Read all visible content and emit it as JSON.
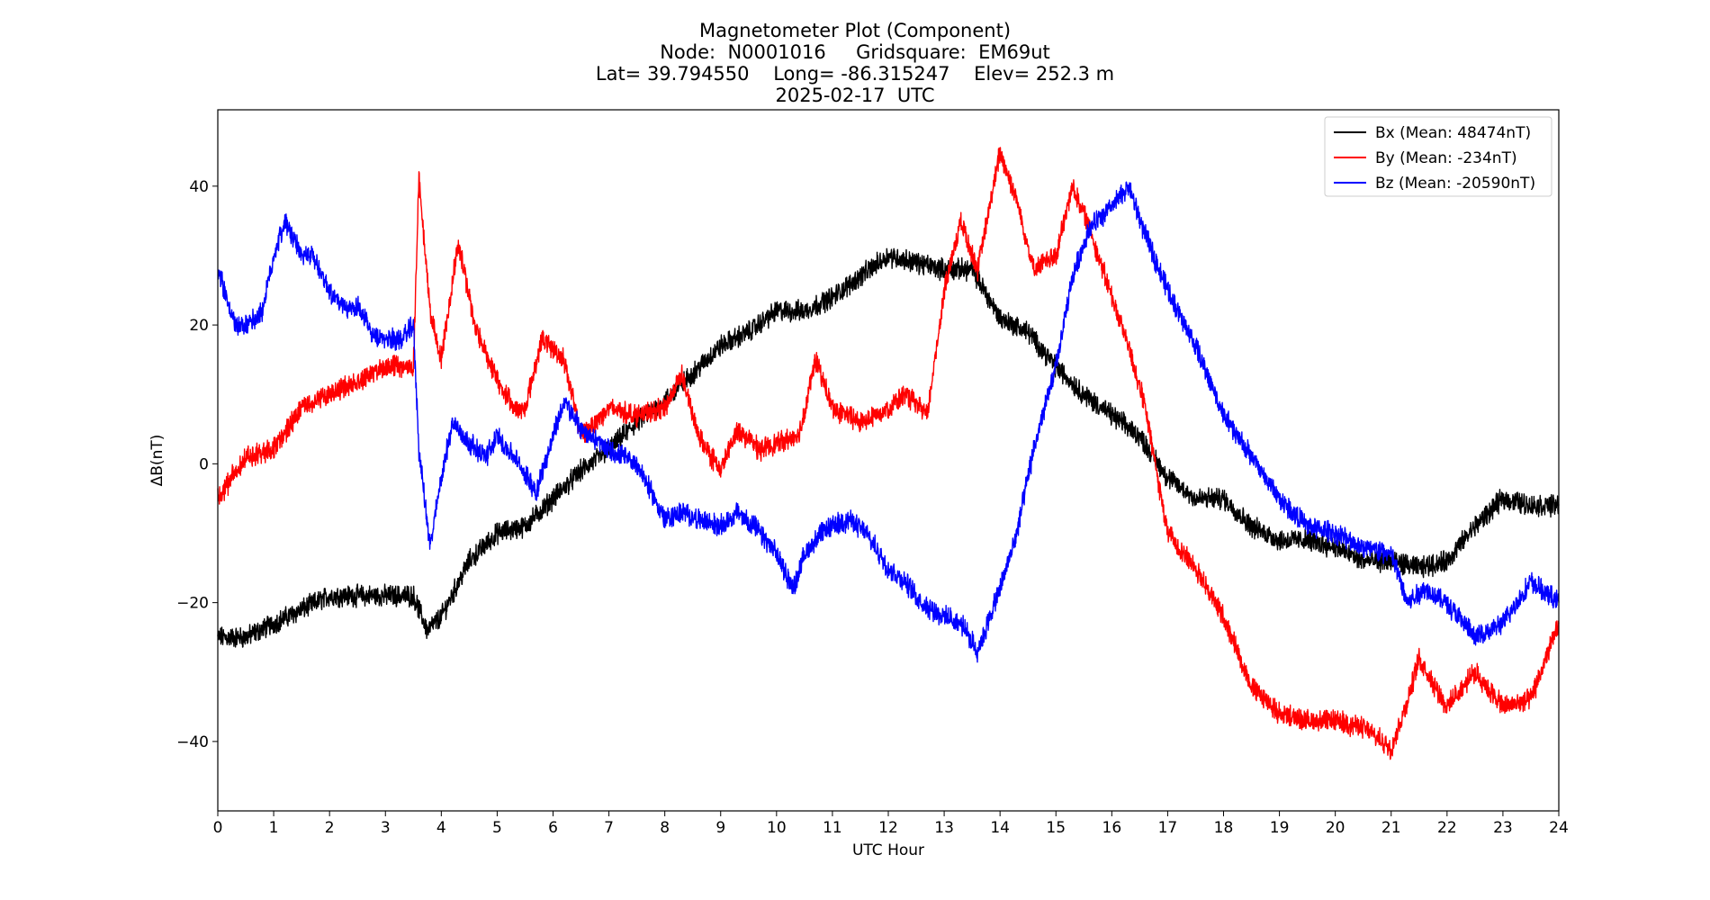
{
  "chart_data": {
    "type": "line",
    "title_lines": [
      "Magnetometer Plot (Component)",
      "Node:  N0001016     Gridsquare:  EM69ut",
      "Lat= 39.794550    Long= -86.315247    Elev= 252.3 m",
      "2025-02-17  UTC"
    ],
    "xlabel": "UTC Hour",
    "ylabel": "ΔB(nT)",
    "xlim": [
      0,
      24
    ],
    "ylim": [
      -50,
      51
    ],
    "xticks": [
      0,
      1,
      2,
      3,
      4,
      5,
      6,
      7,
      8,
      9,
      10,
      11,
      12,
      13,
      14,
      15,
      16,
      17,
      18,
      19,
      20,
      21,
      22,
      23,
      24
    ],
    "yticks": [
      -40,
      -20,
      0,
      20,
      40
    ],
    "ytick_labels": [
      "−40",
      "−20",
      "0",
      "20",
      "40"
    ],
    "grid": false,
    "legend_position": "top-right",
    "series": [
      {
        "name": "Bx (Mean: 48474nT)",
        "color": "#000000",
        "x": [
          0,
          0.5,
          1,
          1.5,
          2,
          2.5,
          3,
          3.5,
          3.75,
          4,
          4.5,
          5,
          5.5,
          6,
          6.5,
          7,
          7.5,
          8,
          8.5,
          9,
          9.5,
          10,
          10.5,
          11,
          11.5,
          12,
          12.5,
          13,
          13.5,
          14,
          14.5,
          15,
          15.5,
          16,
          16.5,
          17,
          17.5,
          18,
          18.5,
          19,
          19.5,
          20,
          20.5,
          21,
          21.5,
          22,
          22.5,
          23,
          23.5,
          24
        ],
        "values": [
          -25,
          -25,
          -23,
          -21,
          -19,
          -19,
          -19,
          -19,
          -24,
          -22,
          -14,
          -10,
          -9,
          -5,
          -1,
          2,
          6,
          9,
          13,
          17,
          19,
          22,
          22,
          24,
          27,
          30,
          29,
          28,
          28,
          21,
          19,
          14,
          10,
          7,
          4,
          -2,
          -5,
          -5,
          -9,
          -11,
          -11,
          -12,
          -14,
          -14,
          -15,
          -14,
          -9,
          -5,
          -6,
          -6
        ]
      },
      {
        "name": "By (Mean: -234nT)",
        "color": "#ff0000",
        "x": [
          0,
          0.5,
          1,
          1.5,
          2,
          2.5,
          3,
          3.5,
          3.6,
          3.8,
          4,
          4.3,
          4.6,
          5,
          5.3,
          5.5,
          5.8,
          6.2,
          6.5,
          7,
          7.5,
          8,
          8.3,
          8.6,
          9,
          9.3,
          9.7,
          10,
          10.4,
          10.7,
          11,
          11.5,
          12,
          12.3,
          12.7,
          13,
          13.3,
          13.6,
          14,
          14.3,
          14.6,
          15,
          15.3,
          15.6,
          16,
          16.3,
          16.6,
          17,
          17.5,
          18,
          18.5,
          19,
          19.5,
          20,
          20.5,
          21,
          21.3,
          21.5,
          22,
          22.5,
          23,
          23.5,
          24
        ],
        "values": [
          -5,
          1,
          2,
          8,
          10,
          12,
          14,
          14,
          41,
          22,
          15,
          32,
          20,
          12,
          8,
          8,
          18,
          15,
          4,
          8,
          7,
          8,
          13,
          4,
          -1,
          5,
          2,
          3,
          4,
          15,
          8,
          6,
          8,
          10,
          7,
          25,
          35,
          28,
          45,
          38,
          28,
          30,
          40,
          34,
          24,
          17,
          8,
          -10,
          -15,
          -22,
          -32,
          -36,
          -37,
          -37,
          -38,
          -41,
          -34,
          -28,
          -35,
          -30,
          -35,
          -34,
          -23
        ]
      },
      {
        "name": "Bz (Mean: -20590nT)",
        "color": "#0000ff",
        "x": [
          0,
          0.3,
          0.5,
          0.8,
          1,
          1.2,
          1.5,
          1.7,
          2,
          2.3,
          2.5,
          2.8,
          3,
          3.3,
          3.5,
          3.6,
          3.8,
          4,
          4.2,
          4.5,
          4.8,
          5,
          5.3,
          5.7,
          6,
          6.2,
          6.5,
          7,
          7.5,
          8,
          8.3,
          8.6,
          9,
          9.3,
          9.6,
          10,
          10.3,
          10.5,
          10.8,
          11,
          11.3,
          11.6,
          12,
          12.3,
          12.6,
          13,
          13.3,
          13.6,
          14,
          14.3,
          14.6,
          15,
          15.3,
          15.6,
          16,
          16.3,
          16.6,
          17,
          17.5,
          18,
          18.5,
          19,
          19.5,
          20,
          20.5,
          21,
          21.3,
          21.6,
          22,
          22.5,
          23,
          23.5,
          24
        ],
        "values": [
          28,
          20,
          20,
          22,
          30,
          35,
          30,
          30,
          25,
          22,
          23,
          18,
          18,
          18,
          20,
          2,
          -12,
          -2,
          6,
          3,
          1,
          4,
          1,
          -4,
          4,
          9,
          5,
          2,
          0,
          -8,
          -7,
          -8,
          -9,
          -7,
          -9,
          -13,
          -18,
          -13,
          -10,
          -9,
          -8,
          -10,
          -15,
          -17,
          -20,
          -22,
          -23,
          -27,
          -18,
          -10,
          2,
          14,
          27,
          34,
          37,
          40,
          33,
          25,
          17,
          7,
          1,
          -5,
          -9,
          -10,
          -12,
          -13,
          -20,
          -18,
          -20,
          -25,
          -23,
          -17,
          -20
        ]
      }
    ]
  }
}
